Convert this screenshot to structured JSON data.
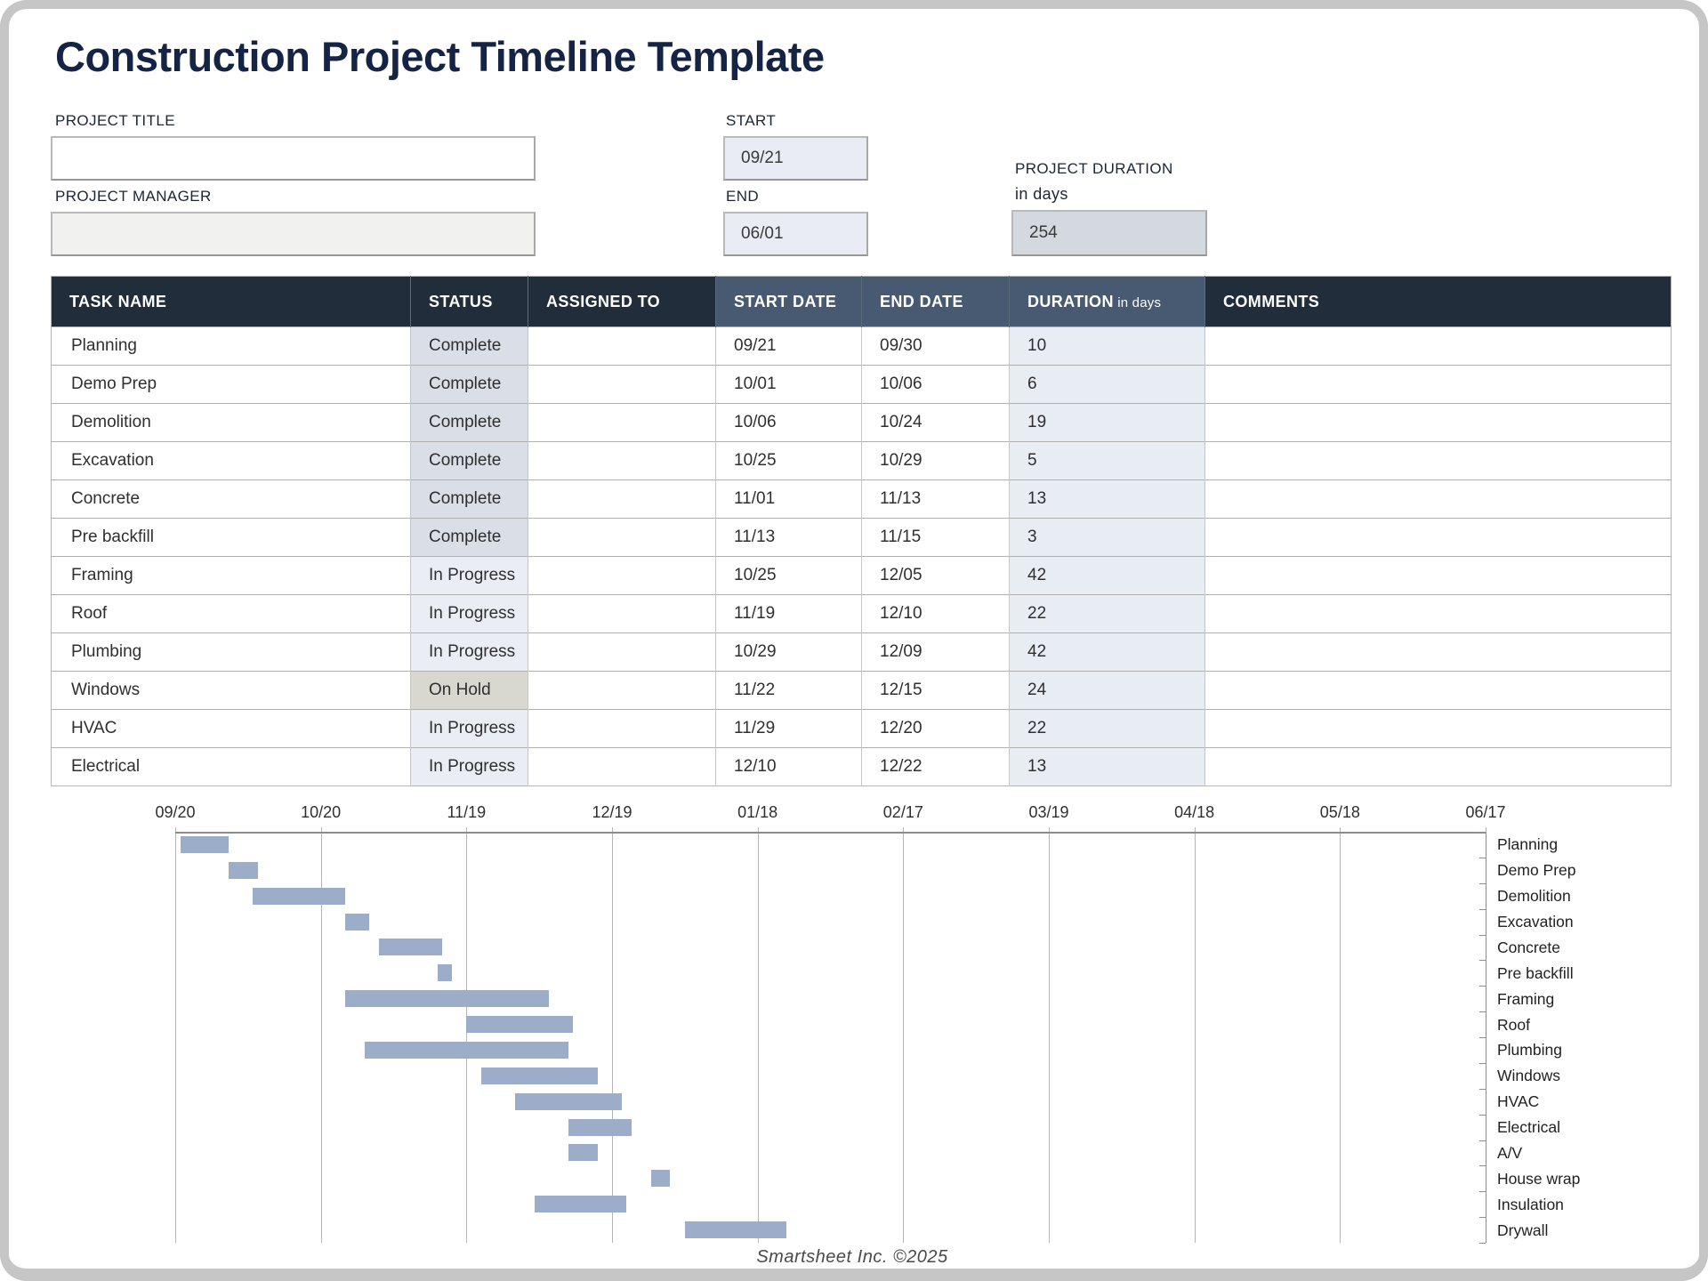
{
  "page": {
    "title": "Construction Project Timeline Template",
    "footer": "Smartsheet Inc. ©2025"
  },
  "form": {
    "project_title_label": "PROJECT TITLE",
    "project_title_value": "",
    "project_manager_label": "PROJECT MANAGER",
    "project_manager_value": "",
    "start_label": "START",
    "start_value": "09/21",
    "end_label": "END",
    "end_value": "06/01",
    "duration_label_line1": "PROJECT DURATION",
    "duration_label_line2": "in days",
    "duration_value": "254"
  },
  "table": {
    "columns": [
      "TASK NAME",
      "STATUS",
      "ASSIGNED TO",
      "START DATE",
      "END DATE",
      "DURATION",
      "COMMENTS"
    ],
    "duration_suffix": " in days",
    "rows": [
      {
        "task": "Planning",
        "status": "Complete",
        "assigned": "",
        "start": "09/21",
        "end": "09/30",
        "duration": "10",
        "comments": ""
      },
      {
        "task": "Demo Prep",
        "status": "Complete",
        "assigned": "",
        "start": "10/01",
        "end": "10/06",
        "duration": "6",
        "comments": ""
      },
      {
        "task": "Demolition",
        "status": "Complete",
        "assigned": "",
        "start": "10/06",
        "end": "10/24",
        "duration": "19",
        "comments": ""
      },
      {
        "task": "Excavation",
        "status": "Complete",
        "assigned": "",
        "start": "10/25",
        "end": "10/29",
        "duration": "5",
        "comments": ""
      },
      {
        "task": "Concrete",
        "status": "Complete",
        "assigned": "",
        "start": "11/01",
        "end": "11/13",
        "duration": "13",
        "comments": ""
      },
      {
        "task": "Pre backfill",
        "status": "Complete",
        "assigned": "",
        "start": "11/13",
        "end": "11/15",
        "duration": "3",
        "comments": ""
      },
      {
        "task": "Framing",
        "status": "In Progress",
        "assigned": "",
        "start": "10/25",
        "end": "12/05",
        "duration": "42",
        "comments": ""
      },
      {
        "task": "Roof",
        "status": "In Progress",
        "assigned": "",
        "start": "11/19",
        "end": "12/10",
        "duration": "22",
        "comments": ""
      },
      {
        "task": "Plumbing",
        "status": "In Progress",
        "assigned": "",
        "start": "10/29",
        "end": "12/09",
        "duration": "42",
        "comments": ""
      },
      {
        "task": "Windows",
        "status": "On Hold",
        "assigned": "",
        "start": "11/22",
        "end": "12/15",
        "duration": "24",
        "comments": ""
      },
      {
        "task": "HVAC",
        "status": "In Progress",
        "assigned": "",
        "start": "11/29",
        "end": "12/20",
        "duration": "22",
        "comments": ""
      },
      {
        "task": "Electrical",
        "status": "In Progress",
        "assigned": "",
        "start": "12/10",
        "end": "12/22",
        "duration": "13",
        "comments": ""
      }
    ]
  },
  "chart_data": {
    "type": "bar",
    "variant": "gantt",
    "title": "",
    "xlabel": "",
    "ylabel": "",
    "grid": true,
    "legend_position": "none",
    "base_date": "09/20",
    "x_ticks": [
      "09/20",
      "10/20",
      "11/19",
      "12/19",
      "01/18",
      "02/17",
      "03/19",
      "04/18",
      "05/18",
      "06/17"
    ],
    "x_tick_day_offsets": [
      0,
      30,
      60,
      90,
      120,
      150,
      180,
      210,
      240,
      270
    ],
    "x_range_days": [
      0,
      270
    ],
    "bar_color": "#9badc9",
    "tasks": [
      {
        "name": "Planning",
        "start": "09/21",
        "end": "09/30",
        "start_day": 1,
        "duration_days": 10
      },
      {
        "name": "Demo Prep",
        "start": "10/01",
        "end": "10/06",
        "start_day": 11,
        "duration_days": 6
      },
      {
        "name": "Demolition",
        "start": "10/06",
        "end": "10/24",
        "start_day": 16,
        "duration_days": 19
      },
      {
        "name": "Excavation",
        "start": "10/25",
        "end": "10/29",
        "start_day": 35,
        "duration_days": 5
      },
      {
        "name": "Concrete",
        "start": "11/01",
        "end": "11/13",
        "start_day": 42,
        "duration_days": 13
      },
      {
        "name": "Pre backfill",
        "start": "11/13",
        "end": "11/15",
        "start_day": 54,
        "duration_days": 3
      },
      {
        "name": "Framing",
        "start": "10/25",
        "end": "12/05",
        "start_day": 35,
        "duration_days": 42
      },
      {
        "name": "Roof",
        "start": "11/19",
        "end": "12/10",
        "start_day": 60,
        "duration_days": 22
      },
      {
        "name": "Plumbing",
        "start": "10/29",
        "end": "12/09",
        "start_day": 39,
        "duration_days": 42
      },
      {
        "name": "Windows",
        "start": "11/22",
        "end": "12/15",
        "start_day": 63,
        "duration_days": 24
      },
      {
        "name": "HVAC",
        "start": "11/29",
        "end": "12/20",
        "start_day": 70,
        "duration_days": 22
      },
      {
        "name": "Electrical",
        "start": "12/10",
        "end": "12/22",
        "start_day": 81,
        "duration_days": 13
      },
      {
        "name": "A/V",
        "start": "12/10",
        "end": "12/15",
        "start_day": 81,
        "duration_days": 6
      },
      {
        "name": "House wrap",
        "start": "12/27",
        "end": "12/30",
        "start_day": 98,
        "duration_days": 4
      },
      {
        "name": "Insulation",
        "start": "12/03",
        "end": "12/21",
        "start_day": 74,
        "duration_days": 19
      },
      {
        "name": "Drywall",
        "start": "01/03",
        "end": "01/23",
        "start_day": 105,
        "duration_days": 21
      }
    ]
  },
  "colors": {
    "title_text": "#152445",
    "header_dark": "#222d3c",
    "header_slate": "#485a71",
    "status_complete": "#d9dee7",
    "status_in_progress": "#eaedf4",
    "status_on_hold": "#d8d8d1",
    "duration_cell": "#e8ecf3",
    "form_box_blue": "#e9ecf5",
    "form_box_steel": "#d3d9de",
    "gantt_bar": "#9badc9",
    "frame_border": "#c6c6c6"
  }
}
